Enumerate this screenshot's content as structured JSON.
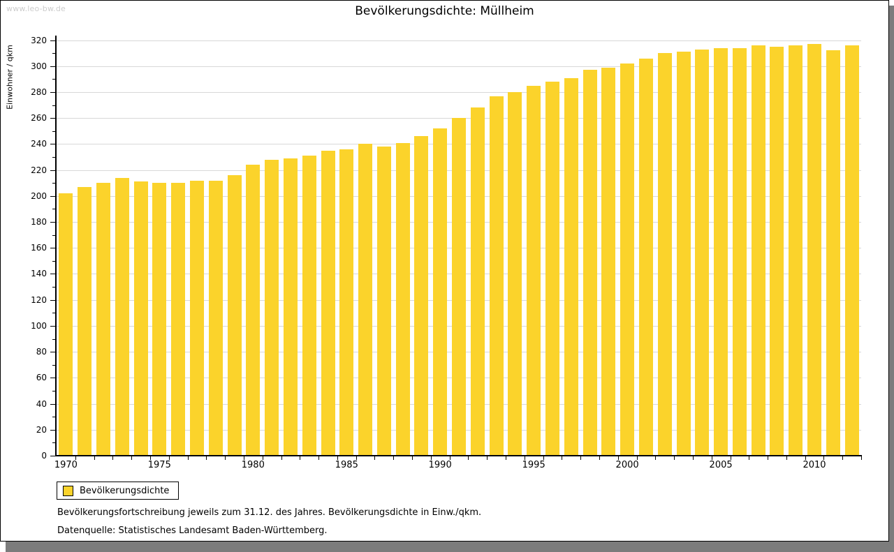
{
  "watermark": "www.leo-bw.de",
  "title": "Bevölkerungsdichte: Müllheim",
  "legend": {
    "label": "Bevölkerungsdichte"
  },
  "footnote1": "Bevölkerungsfortschreibung jeweils zum 31.12. des Jahres. Bevölkerungsdichte in Einw./qkm.",
  "footnote2": "Datenquelle: Statistisches Landesamt Baden-Württemberg.",
  "colors": {
    "bar": "#fbd32b",
    "grid": "#d8d8d8",
    "axis": "#000000",
    "watermark": "#cccccc",
    "shadow": "#7c7c7c",
    "text": "#000000"
  },
  "chart_data": {
    "type": "bar",
    "title": "Bevölkerungsdichte: Müllheim",
    "xlabel": "",
    "ylabel": "Einwohner / qkm",
    "ylim": [
      0,
      320
    ],
    "ytick_step": 20,
    "grid": true,
    "legend_position": "bottom-left",
    "legend_entries": [
      "Bevölkerungsdichte"
    ],
    "xtick_labels": [
      "1970",
      "1975",
      "1980",
      "1985",
      "1990",
      "1995",
      "2000",
      "2005",
      "2010"
    ],
    "categories": [
      1970,
      1971,
      1972,
      1973,
      1974,
      1975,
      1976,
      1977,
      1978,
      1979,
      1980,
      1981,
      1982,
      1983,
      1984,
      1985,
      1986,
      1987,
      1988,
      1989,
      1990,
      1991,
      1992,
      1993,
      1994,
      1995,
      1996,
      1997,
      1998,
      1999,
      2000,
      2001,
      2002,
      2003,
      2004,
      2005,
      2006,
      2007,
      2008,
      2009,
      2010,
      2011,
      2012
    ],
    "values": [
      202,
      207,
      210,
      214,
      211,
      210,
      210,
      212,
      212,
      216,
      224,
      228,
      229,
      231,
      235,
      236,
      240,
      238,
      241,
      246,
      252,
      260,
      268,
      277,
      280,
      285,
      288,
      291,
      297,
      299,
      302,
      306,
      310,
      311,
      313,
      314,
      314,
      316,
      315,
      316,
      317,
      312,
      316
    ]
  }
}
